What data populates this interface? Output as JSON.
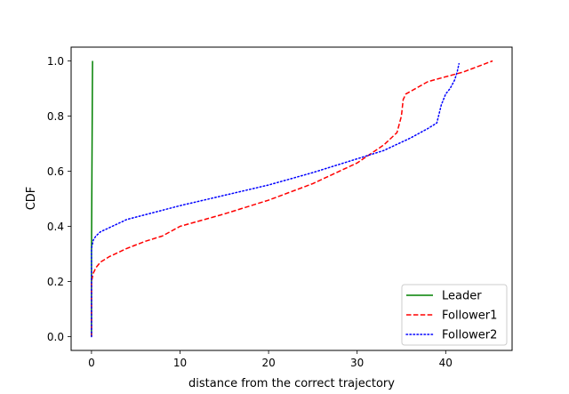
{
  "chart_data": {
    "type": "line",
    "title": "",
    "xlabel": "distance from the correct trajectory",
    "ylabel": "CDF",
    "xlim": [
      -2.3,
      47.5
    ],
    "ylim": [
      -0.05,
      1.05
    ],
    "x_ticks": [
      0,
      10,
      20,
      30,
      40
    ],
    "y_ticks": [
      0.0,
      0.2,
      0.4,
      0.6,
      0.8,
      1.0
    ],
    "x_tick_labels": [
      "0",
      "10",
      "20",
      "30",
      "40"
    ],
    "y_tick_labels": [
      "0.0",
      "0.2",
      "0.4",
      "0.6",
      "0.8",
      "1.0"
    ],
    "grid": false,
    "legend_position": "lower-right",
    "series": [
      {
        "name": "Leader",
        "color": "#008000",
        "dash": "solid",
        "x": [
          0.0,
          0.0,
          0.05,
          0.1,
          0.12
        ],
        "y": [
          0.0,
          0.3,
          0.6,
          0.9,
          1.0
        ]
      },
      {
        "name": "Follower1",
        "color": "#ff0000",
        "dash": "dashed",
        "x": [
          0.0,
          0.0,
          0.2,
          0.5,
          1.0,
          2.0,
          4.0,
          6.0,
          8.0,
          10.0,
          15.0,
          20.0,
          25.0,
          30.0,
          33.0,
          34.5,
          35.0,
          35.2,
          35.5,
          38.0,
          42.0,
          45.3
        ],
        "y": [
          0.0,
          0.2,
          0.23,
          0.25,
          0.27,
          0.29,
          0.32,
          0.345,
          0.365,
          0.4,
          0.445,
          0.495,
          0.555,
          0.63,
          0.695,
          0.74,
          0.8,
          0.86,
          0.88,
          0.925,
          0.96,
          1.0
        ]
      },
      {
        "name": "Follower2",
        "color": "#0000ff",
        "dash": "dotted",
        "x": [
          0.0,
          0.0,
          0.2,
          0.5,
          1.0,
          2.0,
          4.0,
          10.0,
          20.0,
          25.0,
          30.0,
          33.0,
          36.0,
          38.0,
          39.0,
          39.5,
          40.0,
          40.5,
          41.0,
          41.3,
          41.5
        ],
        "y": [
          0.0,
          0.32,
          0.35,
          0.365,
          0.38,
          0.395,
          0.425,
          0.475,
          0.55,
          0.595,
          0.645,
          0.675,
          0.72,
          0.755,
          0.775,
          0.84,
          0.88,
          0.9,
          0.93,
          0.96,
          0.99
        ]
      }
    ]
  }
}
